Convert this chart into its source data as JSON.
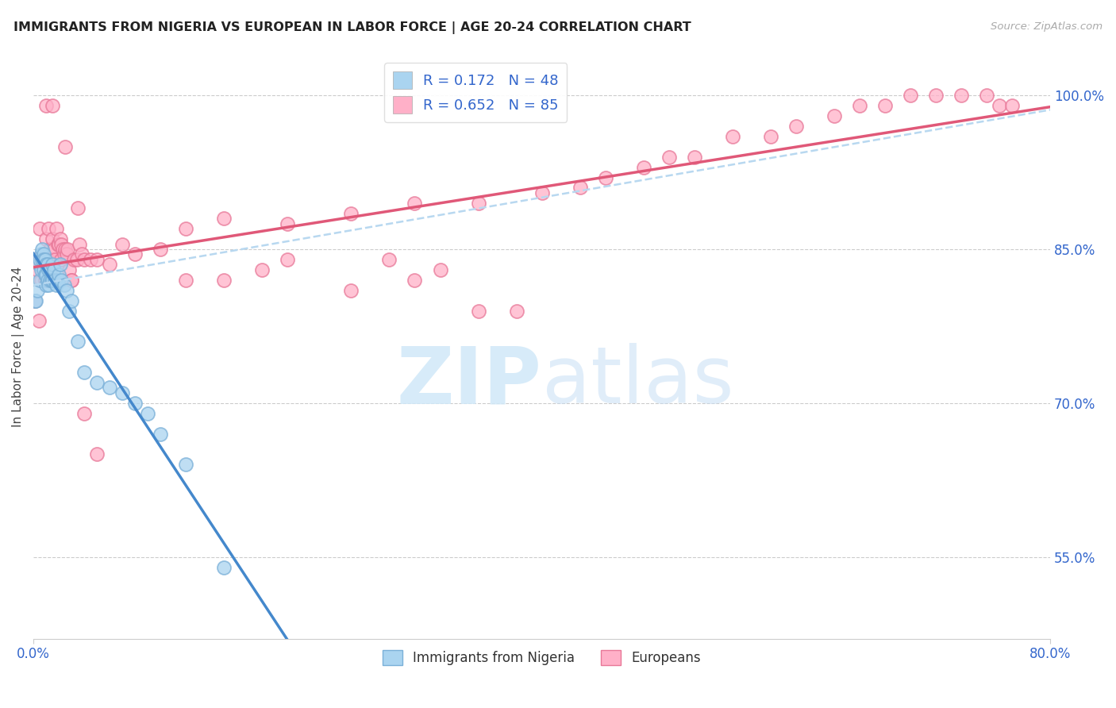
{
  "title": "IMMIGRANTS FROM NIGERIA VS EUROPEAN IN LABOR FORCE | AGE 20-24 CORRELATION CHART",
  "source": "Source: ZipAtlas.com",
  "ylabel": "In Labor Force | Age 20-24",
  "xmin": 0.0,
  "xmax": 0.8,
  "ymin": 0.47,
  "ymax": 1.04,
  "yticks": [
    0.55,
    0.7,
    0.85,
    1.0
  ],
  "ytick_labels": [
    "55.0%",
    "70.0%",
    "85.0%",
    "100.0%"
  ],
  "nigeria_R": 0.172,
  "nigeria_N": 48,
  "european_R": 0.652,
  "european_N": 85,
  "nigeria_fill": "#aad4f0",
  "nigeria_edge": "#7ab0d8",
  "european_fill": "#ffb0c8",
  "european_edge": "#e87898",
  "nigeria_line": "#4488cc",
  "european_line": "#e05878",
  "dashed_line": "#b8d8f0",
  "text_blue": "#3366cc",
  "watermark_zip": "#c8e0f8",
  "watermark_atlas": "#b0cce8",
  "nigeria_x": [
    0.001,
    0.002,
    0.003,
    0.004,
    0.005,
    0.005,
    0.006,
    0.006,
    0.007,
    0.007,
    0.008,
    0.008,
    0.008,
    0.009,
    0.009,
    0.01,
    0.01,
    0.01,
    0.011,
    0.011,
    0.012,
    0.012,
    0.013,
    0.013,
    0.014,
    0.015,
    0.015,
    0.016,
    0.017,
    0.018,
    0.019,
    0.02,
    0.021,
    0.022,
    0.024,
    0.026,
    0.028,
    0.03,
    0.035,
    0.04,
    0.05,
    0.06,
    0.07,
    0.08,
    0.09,
    0.1,
    0.12,
    0.15
  ],
  "nigeria_y": [
    0.8,
    0.8,
    0.81,
    0.835,
    0.82,
    0.84,
    0.845,
    0.83,
    0.85,
    0.84,
    0.845,
    0.84,
    0.83,
    0.84,
    0.825,
    0.835,
    0.825,
    0.815,
    0.835,
    0.82,
    0.83,
    0.815,
    0.83,
    0.82,
    0.82,
    0.835,
    0.82,
    0.83,
    0.82,
    0.815,
    0.82,
    0.825,
    0.835,
    0.82,
    0.815,
    0.81,
    0.79,
    0.8,
    0.76,
    0.73,
    0.72,
    0.715,
    0.71,
    0.7,
    0.69,
    0.67,
    0.64,
    0.54
  ],
  "european_x": [
    0.001,
    0.002,
    0.003,
    0.004,
    0.005,
    0.006,
    0.006,
    0.007,
    0.008,
    0.009,
    0.01,
    0.011,
    0.011,
    0.012,
    0.013,
    0.013,
    0.014,
    0.015,
    0.016,
    0.017,
    0.018,
    0.019,
    0.02,
    0.021,
    0.022,
    0.022,
    0.023,
    0.024,
    0.025,
    0.026,
    0.027,
    0.028,
    0.03,
    0.032,
    0.034,
    0.036,
    0.038,
    0.04,
    0.045,
    0.05,
    0.06,
    0.07,
    0.08,
    0.1,
    0.12,
    0.15,
    0.2,
    0.25,
    0.3,
    0.35,
    0.4,
    0.43,
    0.45,
    0.48,
    0.5,
    0.52,
    0.55,
    0.58,
    0.6,
    0.63,
    0.65,
    0.67,
    0.69,
    0.71,
    0.73,
    0.75,
    0.76,
    0.77,
    0.01,
    0.015,
    0.025,
    0.03,
    0.035,
    0.2,
    0.3,
    0.35,
    0.38,
    0.28,
    0.32,
    0.25,
    0.12,
    0.15,
    0.18,
    0.05,
    0.04
  ],
  "european_y": [
    0.8,
    0.84,
    0.83,
    0.78,
    0.87,
    0.84,
    0.82,
    0.84,
    0.84,
    0.82,
    0.86,
    0.84,
    0.82,
    0.87,
    0.85,
    0.83,
    0.84,
    0.86,
    0.85,
    0.84,
    0.87,
    0.855,
    0.855,
    0.86,
    0.855,
    0.84,
    0.85,
    0.845,
    0.85,
    0.845,
    0.85,
    0.83,
    0.82,
    0.84,
    0.84,
    0.855,
    0.845,
    0.84,
    0.84,
    0.84,
    0.835,
    0.855,
    0.845,
    0.85,
    0.87,
    0.88,
    0.875,
    0.885,
    0.895,
    0.895,
    0.905,
    0.91,
    0.92,
    0.93,
    0.94,
    0.94,
    0.96,
    0.96,
    0.97,
    0.98,
    0.99,
    0.99,
    1.0,
    1.0,
    1.0,
    1.0,
    0.99,
    0.99,
    0.99,
    0.99,
    0.95,
    0.82,
    0.89,
    0.84,
    0.82,
    0.79,
    0.79,
    0.84,
    0.83,
    0.81,
    0.82,
    0.82,
    0.83,
    0.65,
    0.69
  ]
}
